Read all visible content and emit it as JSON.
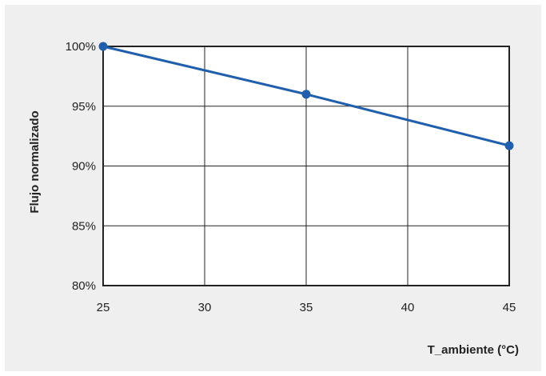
{
  "chart_data": {
    "type": "line",
    "title": "",
    "xlabel": "T_ambiente (°C)",
    "ylabel": "Flujo normalizado",
    "x": [
      25,
      35,
      45
    ],
    "series": [
      {
        "values": [
          100,
          96,
          91.7
        ]
      }
    ],
    "xlim": [
      25,
      45
    ],
    "ylim": [
      80,
      100
    ],
    "x_ticks": [
      25,
      30,
      35,
      40,
      45
    ],
    "y_ticks": [
      80,
      85,
      90,
      95,
      100
    ],
    "x_tick_labels": [
      "25",
      "30",
      "35",
      "40",
      "45"
    ],
    "y_tick_labels": [
      "80%",
      "85%",
      "90%",
      "95%",
      "100%"
    ],
    "grid": true,
    "line_color": "#1f5fae",
    "grid_color": "#222222",
    "plot_background": "#ffffff",
    "panel_background": "#efefef"
  }
}
